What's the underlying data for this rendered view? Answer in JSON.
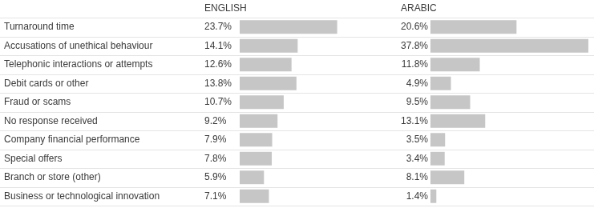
{
  "chart_data": [
    {
      "type": "bar",
      "title": "ENGLISH",
      "orientation": "horizontal",
      "categories": [
        "Turnaround time",
        "Accusations of unethical behaviour",
        "Telephonic interactions or attempts",
        "Debit cards or other",
        "Fraud or scams",
        "No response received",
        "Company financial performance",
        "Special offers",
        "Branch or store (other)",
        "Business or technological innovation"
      ],
      "values": [
        23.7,
        14.1,
        12.6,
        13.8,
        10.7,
        9.2,
        7.9,
        7.8,
        5.9,
        7.1
      ],
      "value_labels": [
        "23.7%",
        "14.1%",
        "12.6%",
        "13.8%",
        "10.7%",
        "9.2%",
        "7.9%",
        "7.8%",
        "5.9%",
        "7.1%"
      ],
      "color": "#c6c6c6",
      "xlim": [
        0,
        38
      ],
      "grid": false,
      "data_labels": true,
      "tick_labels": "y"
    },
    {
      "type": "bar",
      "title": "ARABIC",
      "orientation": "horizontal",
      "categories": [
        "Turnaround time",
        "Accusations of unethical behaviour",
        "Telephonic interactions or attempts",
        "Debit cards or other",
        "Fraud or scams",
        "No response received",
        "Company financial performance",
        "Special offers",
        "Branch or store (other)",
        "Business or technological innovation"
      ],
      "values": [
        20.6,
        37.8,
        11.8,
        4.9,
        9.5,
        13.1,
        3.5,
        3.4,
        8.1,
        1.4
      ],
      "value_labels": [
        "20.6%",
        "37.8%",
        "11.8%",
        "4.9%",
        "9.5%",
        "13.1%",
        "3.5%",
        "3.4%",
        "8.1%",
        "1.4%"
      ],
      "color": "#c6c6c6",
      "xlim": [
        0,
        38
      ],
      "grid": false,
      "data_labels": true,
      "tick_labels": false
    }
  ]
}
